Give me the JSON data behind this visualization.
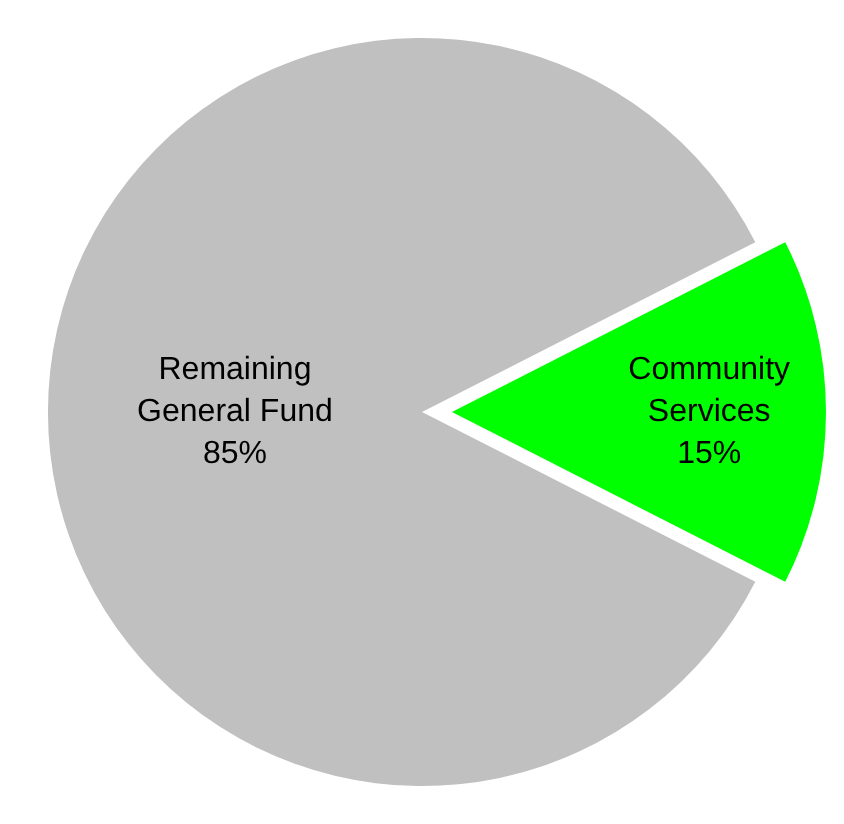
{
  "chart_data": {
    "type": "pie",
    "categories": [
      "Remaining General Fund",
      "Community Services"
    ],
    "values": [
      85,
      15
    ],
    "colors": [
      "#c0c0c0",
      "#00ff00"
    ],
    "value_labels": [
      "85%",
      "15%"
    ],
    "legend": false
  }
}
